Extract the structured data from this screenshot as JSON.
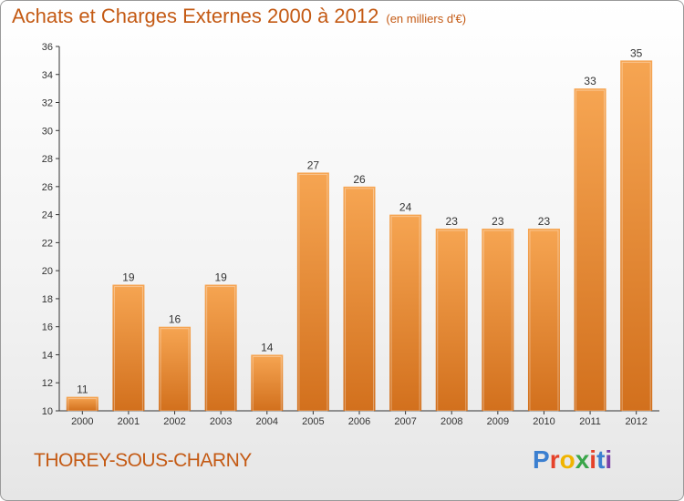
{
  "header": {
    "title": "Achats et Charges Externes 2000 à 2012",
    "subtitle": "(en milliers d'€)"
  },
  "footer": {
    "commune": "THOREY-SOUS-CHARNY",
    "logo_text": "Proxiti"
  },
  "colors": {
    "title": "#c45a14",
    "bar_light": "#f6a552",
    "bar_dark": "#d2701d",
    "logo": [
      "#3b7fd0",
      "#e5422a",
      "#f0b400",
      "#3aa64a",
      "#e5422a",
      "#3b7fd0",
      "#7a3fa8"
    ]
  },
  "chart_data": {
    "type": "bar",
    "title": "Achats et Charges Externes 2000 à 2012",
    "subtitle": "(en milliers d'€)",
    "categories": [
      "2000",
      "2001",
      "2002",
      "2003",
      "2004",
      "2005",
      "2006",
      "2007",
      "2008",
      "2009",
      "2010",
      "2011",
      "2012"
    ],
    "values": [
      11,
      19,
      16,
      19,
      14,
      27,
      26,
      24,
      23,
      23,
      23,
      33,
      35
    ],
    "ylim": [
      10,
      36
    ],
    "yticks": [
      10,
      12,
      14,
      16,
      18,
      20,
      22,
      24,
      26,
      28,
      30,
      32,
      34,
      36
    ],
    "xlabel": "",
    "ylabel": "",
    "grid": false,
    "data_labels": true
  }
}
